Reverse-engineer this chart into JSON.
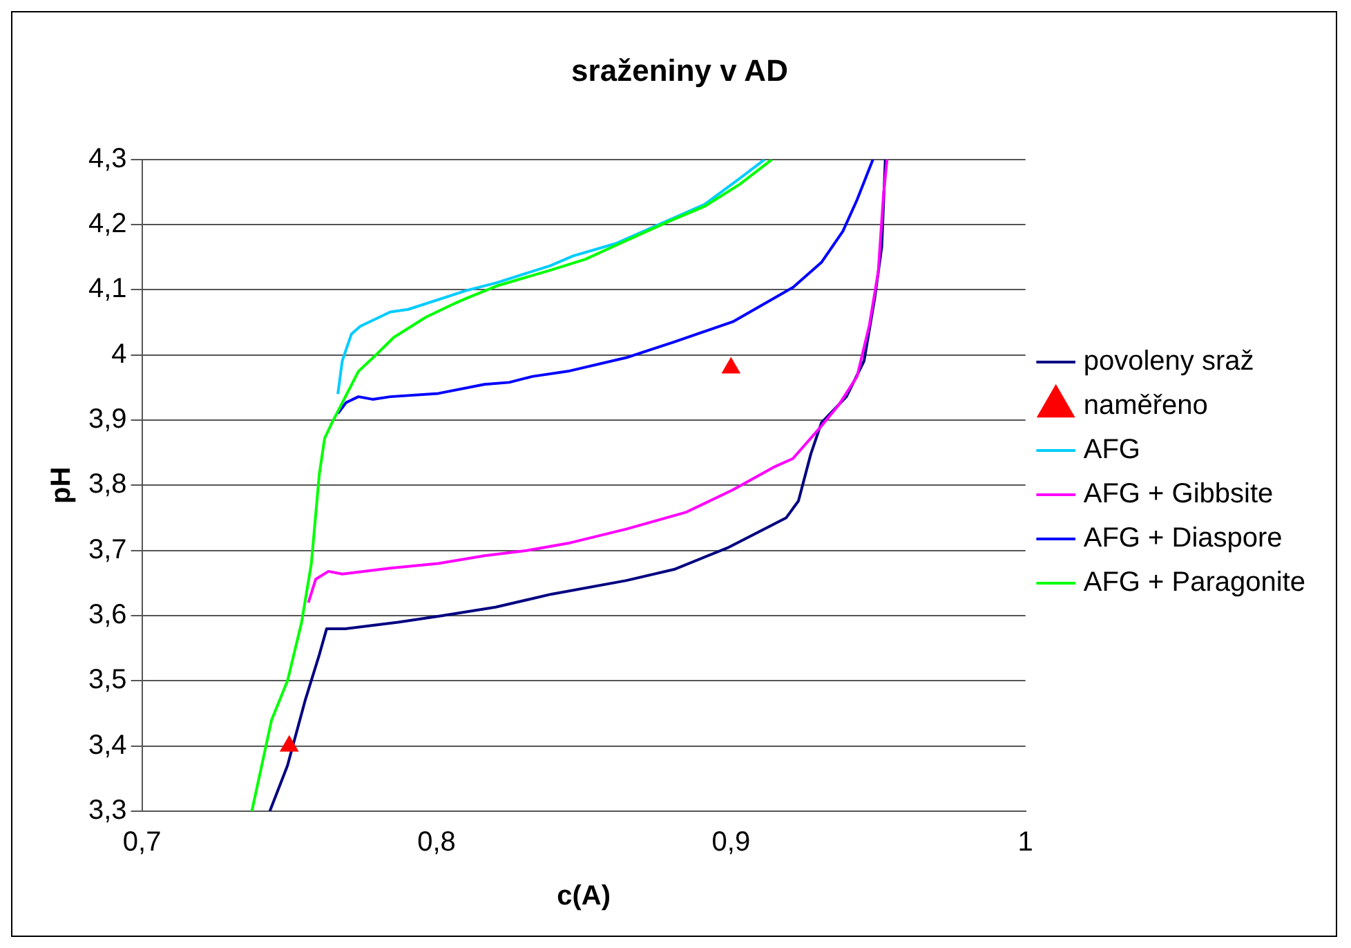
{
  "chart_data": {
    "type": "line",
    "title": "sraženiny v AD",
    "xlabel": "c(A)",
    "ylabel": "pH",
    "xlim": [
      0.7,
      1
    ],
    "xticks": [
      {
        "value": 0.7,
        "label": "0,7"
      },
      {
        "value": 0.8,
        "label": "0,8"
      },
      {
        "value": 0.9,
        "label": "0,9"
      },
      {
        "value": 1,
        "label": "1"
      }
    ],
    "ylim": [
      3.3,
      4.3
    ],
    "yticks": [
      {
        "value": 3.3,
        "label": "3,3"
      },
      {
        "value": 3.4,
        "label": "3,4"
      },
      {
        "value": 3.5,
        "label": "3,5"
      },
      {
        "value": 3.6,
        "label": "3,6"
      },
      {
        "value": 3.7,
        "label": "3,7"
      },
      {
        "value": 3.8,
        "label": "3,8"
      },
      {
        "value": 3.9,
        "label": "3,9"
      },
      {
        "value": 4,
        "label": "4"
      },
      {
        "value": 4.1,
        "label": "4,1"
      },
      {
        "value": 4.2,
        "label": "4,2"
      },
      {
        "value": 4.3,
        "label": "4,3"
      }
    ],
    "grid": "y",
    "legend": "right",
    "marker": "none",
    "line_style": "solid",
    "series": [
      {
        "name": "povoleny sraž",
        "color": "#000080",
        "x": [
          0.7434,
          0.7494,
          0.7554,
          0.7602,
          0.7627,
          0.769,
          0.778,
          0.787,
          0.802,
          0.82,
          0.839,
          0.8645,
          0.8807,
          0.8988,
          0.9187,
          0.9229,
          0.9271,
          0.9307,
          0.9392,
          0.9452,
          0.9488,
          0.9512,
          0.9524
        ],
        "values": [
          3.3,
          3.37,
          3.47,
          3.54,
          3.58,
          3.58,
          3.585,
          3.59,
          3.6,
          3.613,
          3.633,
          3.654,
          3.671,
          3.704,
          3.75,
          3.776,
          3.848,
          3.896,
          3.936,
          3.991,
          4.087,
          4.166,
          4.3
        ]
      },
      {
        "name": "naměřeno",
        "type": "scatter",
        "marker": "triangle",
        "color": "#ff0000",
        "x": [
          0.75,
          0.9
        ],
        "values": [
          3.4,
          3.98
        ]
      },
      {
        "name": "AFG",
        "color": "#00ccff",
        "x": [
          0.7665,
          0.768,
          0.7711,
          0.7741,
          0.7843,
          0.7904,
          0.8102,
          0.8205,
          0.8386,
          0.8464,
          0.8608,
          0.8789,
          0.891,
          0.903,
          0.9114
        ],
        "values": [
          3.94,
          3.991,
          4.032,
          4.044,
          4.066,
          4.07,
          4.099,
          4.111,
          4.137,
          4.152,
          4.171,
          4.207,
          4.231,
          4.271,
          4.3
        ]
      },
      {
        "name": "AFG + Gibbsite",
        "color": "#ff00ff",
        "x": [
          0.7565,
          0.759,
          0.7633,
          0.768,
          0.7843,
          0.8006,
          0.8163,
          0.8307,
          0.8446,
          0.8645,
          0.8849,
          0.9006,
          0.915,
          0.921,
          0.9307,
          0.9367,
          0.9428,
          0.947,
          0.95,
          0.9518,
          0.953
        ],
        "values": [
          3.62,
          3.656,
          3.668,
          3.664,
          3.673,
          3.68,
          3.692,
          3.7,
          3.711,
          3.733,
          3.759,
          3.793,
          3.829,
          3.841,
          3.891,
          3.924,
          3.967,
          4.046,
          4.128,
          4.247,
          4.3
        ]
      },
      {
        "name": "AFG + Diaspore",
        "color": "#0000ff",
        "x": [
          0.7665,
          0.7693,
          0.7735,
          0.7783,
          0.7843,
          0.8006,
          0.8163,
          0.8247,
          0.8325,
          0.8446,
          0.8645,
          0.8807,
          0.9006,
          0.9211,
          0.9307,
          0.938,
          0.9428,
          0.9482
        ],
        "values": [
          3.91,
          3.927,
          3.936,
          3.932,
          3.936,
          3.941,
          3.955,
          3.958,
          3.967,
          3.975,
          3.996,
          4.02,
          4.051,
          4.104,
          4.142,
          4.19,
          4.238,
          4.3
        ]
      },
      {
        "name": "AFG + Paragonite",
        "color": "#00ff00",
        "x": [
          0.7373,
          0.744,
          0.7494,
          0.7542,
          0.7575,
          0.7602,
          0.762,
          0.7645,
          0.7735,
          0.7801,
          0.7855,
          0.7964,
          0.8066,
          0.8102,
          0.8205,
          0.8386,
          0.8506,
          0.8608,
          0.8789,
          0.891,
          0.903,
          0.9139
        ],
        "values": [
          3.3,
          3.44,
          3.5,
          3.59,
          3.68,
          3.817,
          3.872,
          3.896,
          3.975,
          4.003,
          4.027,
          4.058,
          4.08,
          4.087,
          4.106,
          4.13,
          4.147,
          4.168,
          4.205,
          4.228,
          4.262,
          4.3
        ]
      }
    ]
  }
}
